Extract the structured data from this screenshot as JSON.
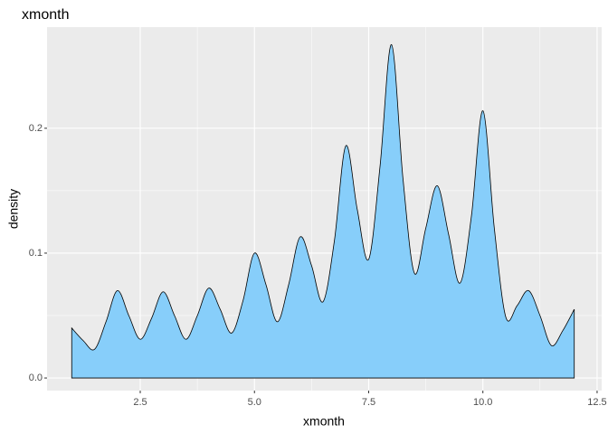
{
  "chart_data": {
    "type": "density",
    "title": "xmonth",
    "x_label": "xmonth",
    "y_label": "density",
    "x": [
      1,
      1.25,
      1.5,
      1.75,
      2,
      2.25,
      2.5,
      2.75,
      3,
      3.25,
      3.5,
      3.75,
      4,
      4.25,
      4.5,
      4.75,
      5,
      5.25,
      5.5,
      5.75,
      6,
      6.25,
      6.5,
      6.75,
      7,
      7.25,
      7.5,
      7.75,
      8,
      8.25,
      8.5,
      8.75,
      9,
      9.25,
      9.5,
      9.75,
      10,
      10.25,
      10.5,
      10.75,
      11,
      11.25,
      11.5,
      11.75,
      12
    ],
    "values": [
      0.04,
      0.03,
      0.023,
      0.045,
      0.07,
      0.05,
      0.031,
      0.048,
      0.069,
      0.05,
      0.031,
      0.05,
      0.072,
      0.055,
      0.036,
      0.062,
      0.1,
      0.075,
      0.045,
      0.075,
      0.113,
      0.09,
      0.061,
      0.11,
      0.186,
      0.135,
      0.095,
      0.17,
      0.267,
      0.16,
      0.084,
      0.12,
      0.154,
      0.115,
      0.076,
      0.13,
      0.214,
      0.12,
      0.049,
      0.058,
      0.07,
      0.05,
      0.026,
      0.038,
      0.055
    ],
    "color": "#87cefa",
    "line_color": "#000000",
    "xlim": [
      0.46,
      12.6
    ],
    "ylim": [
      -0.0101,
      0.281
    ],
    "xticks": [
      2.5,
      {
        "value": 5,
        "label": "5.0"
      },
      7.5,
      {
        "value": 10,
        "label": "10.0"
      },
      12.5
    ],
    "yticks": [
      {
        "value": 0,
        "label": "0.0"
      },
      0.1,
      0.2
    ],
    "grid": true
  }
}
